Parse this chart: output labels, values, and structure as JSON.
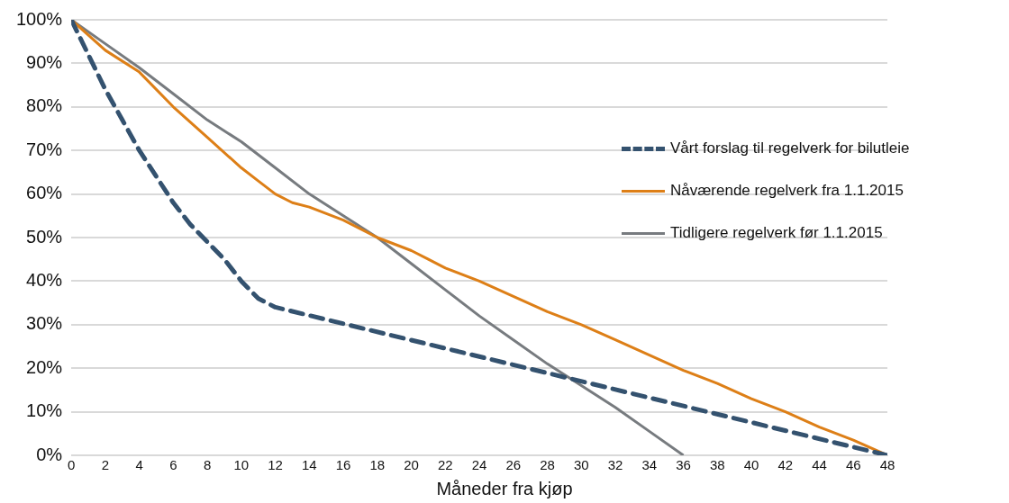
{
  "chart_data": {
    "type": "line",
    "xlabel": "Måneder fra kjøp",
    "xlim": [
      0,
      48
    ],
    "xticks": [
      0,
      2,
      4,
      6,
      8,
      10,
      12,
      14,
      16,
      18,
      20,
      22,
      24,
      26,
      28,
      30,
      32,
      34,
      36,
      38,
      40,
      42,
      44,
      46,
      48
    ],
    "ylim": [
      0,
      100
    ],
    "yticks": [
      {
        "value": 0,
        "label": "0%"
      },
      {
        "value": 10,
        "label": "10%"
      },
      {
        "value": 20,
        "label": "20%"
      },
      {
        "value": 30,
        "label": "30%"
      },
      {
        "value": 40,
        "label": "40%"
      },
      {
        "value": 50,
        "label": "50%"
      },
      {
        "value": 60,
        "label": "60%"
      },
      {
        "value": 70,
        "label": "70%"
      },
      {
        "value": 80,
        "label": "80%"
      },
      {
        "value": 90,
        "label": "90%"
      },
      {
        "value": 100,
        "label": "100%"
      }
    ],
    "grid": "y",
    "legend": "right",
    "marker": "none",
    "series": [
      {
        "name": "Vårt forslag til regelverk for bilutleie",
        "color": "#34526f",
        "line_style": "dashed",
        "x": [
          0,
          1,
          2,
          3,
          4,
          5,
          6,
          7,
          8,
          9,
          10,
          11,
          12,
          48
        ],
        "values": [
          100,
          92,
          84,
          77,
          70,
          64,
          58,
          53,
          49,
          45,
          40,
          36,
          34,
          0
        ]
      },
      {
        "name": "Nåværende regelverk fra 1.1.2015",
        "color": "#dd7f17",
        "line_style": "solid",
        "x": [
          0,
          2,
          4,
          6,
          8,
          10,
          11,
          12,
          13,
          14,
          16,
          18,
          20,
          21,
          22,
          24,
          26,
          28,
          30,
          32,
          34,
          36,
          38,
          40,
          42,
          44,
          46,
          48
        ],
        "values": [
          100,
          93,
          88,
          80,
          73,
          66,
          63,
          60,
          58,
          57,
          54,
          50,
          47,
          45,
          43,
          40,
          36.5,
          33,
          30,
          26.5,
          23,
          19.5,
          16.5,
          13,
          10,
          6.5,
          3.5,
          0
        ]
      },
      {
        "name": "Tidligere regelverk før 1.1.2015",
        "color": "#777b7f",
        "line_style": "solid",
        "x": [
          0,
          2,
          4,
          6,
          8,
          10,
          12,
          14,
          16,
          18,
          20,
          22,
          24,
          26,
          28,
          30,
          32,
          34,
          36
        ],
        "values": [
          100,
          94.5,
          89,
          83,
          77,
          72,
          66,
          60,
          55,
          50,
          44,
          38,
          32,
          26.5,
          21,
          16,
          11,
          5.5,
          0
        ]
      }
    ]
  }
}
